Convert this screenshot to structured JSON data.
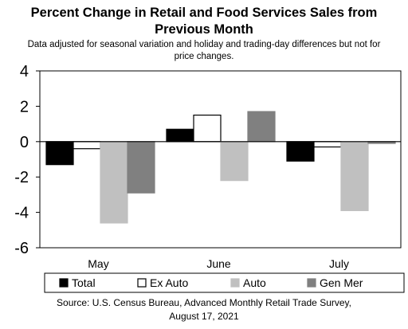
{
  "title_lines": [
    "Percent Change in Retail and Food Services Sales from",
    "Previous Month"
  ],
  "subtitle_lines": [
    "Data adjusted for seasonal variation and holiday and trading-day differences but not for",
    "price changes."
  ],
  "source_lines": [
    "Source: U.S. Census Bureau, Advanced Monthly Retail Trade Survey,",
    "August 17, 2021"
  ],
  "chart_data": {
    "type": "bar",
    "categories": [
      "May",
      "June",
      "July"
    ],
    "series": [
      {
        "name": "Total",
        "values": [
          -1.3,
          0.7,
          -1.1
        ],
        "color": "#000000",
        "stroke": "#000000"
      },
      {
        "name": "Ex Auto",
        "values": [
          -0.4,
          1.5,
          -0.3
        ],
        "color": "#ffffff",
        "stroke": "#000000"
      },
      {
        "name": "Auto",
        "values": [
          -4.6,
          -2.2,
          -3.9
        ],
        "color": "#c0c0c0",
        "stroke": "#c0c0c0"
      },
      {
        "name": "Gen Mer",
        "values": [
          -2.9,
          1.7,
          -0.1
        ],
        "color": "#808080",
        "stroke": "#808080"
      }
    ],
    "ylim": [
      -6,
      4
    ],
    "yticks": [
      -6,
      -4,
      -2,
      0,
      2,
      4
    ],
    "ytick_labels": [
      "-6",
      "-4",
      "-2",
      "0",
      "2",
      "4"
    ],
    "grid": false,
    "legend_position": "bottom"
  }
}
